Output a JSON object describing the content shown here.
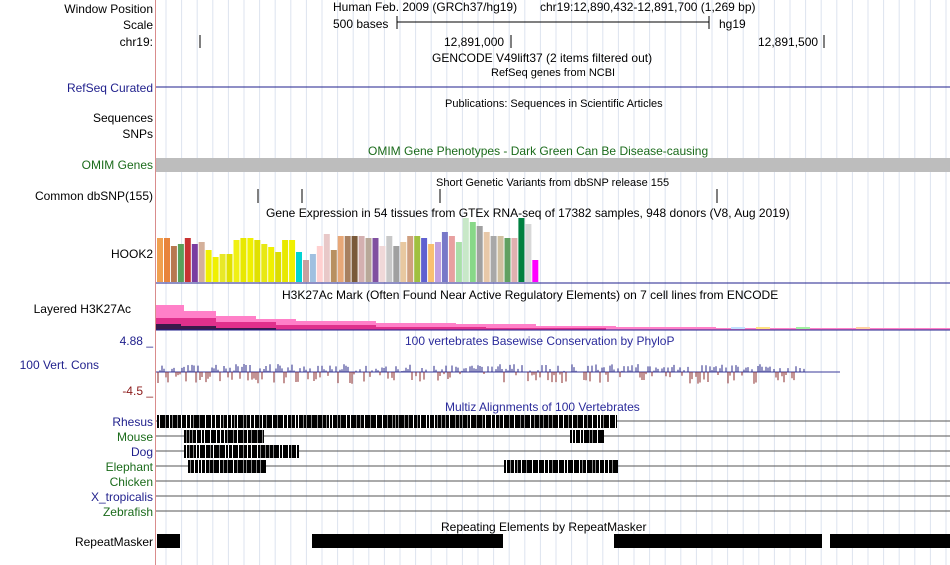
{
  "position": {
    "label": "Window Position",
    "assembly": "Human Feb. 2009 (GRCh37/hg19)",
    "coords": "chr19:12,890,432-12,891,700 (1,269 bp)"
  },
  "scale": {
    "label": "Scale",
    "bar_text": "500 bases",
    "db": "hg19"
  },
  "chrom": {
    "label": "chr19:",
    "tick1": "12,891,000",
    "tick2": "12,891,500"
  },
  "gencode": {
    "title": "GENCODE V49lift37 (2 items filtered out)"
  },
  "refseq": {
    "label": "RefSeq Curated",
    "title": "RefSeq genes from NCBI"
  },
  "publications": {
    "title": "Publications: Sequences in Scientific Articles",
    "label1": "Sequences",
    "label2": "SNPs"
  },
  "omim": {
    "label": "OMIM Genes",
    "title": "OMIM Gene Phenotypes - Dark Green Can Be Disease-causing"
  },
  "dbsnp": {
    "label": "Common dbSNP(155)",
    "title": "Short Genetic Variants from dbSNP release 155"
  },
  "gtex": {
    "label": "HOOK2",
    "title": "Gene Expression in 54 tissues from GTEx RNA-seq of 17382 samples, 948 donors (V8, Aug 2019)",
    "values": [
      44,
      44,
      36,
      38,
      44,
      38,
      40,
      32,
      25,
      28,
      28,
      42,
      44,
      44,
      42,
      38,
      35,
      30,
      42,
      42,
      30,
      22,
      28,
      36,
      48,
      32,
      46,
      46,
      46,
      46,
      44,
      44,
      36,
      46,
      36,
      40,
      46,
      46,
      44,
      38,
      40,
      50,
      46,
      40,
      64,
      60,
      56,
      50,
      46,
      46,
      44,
      44,
      64,
      58,
      22
    ],
    "colors": [
      "#f0a050",
      "#e8843c",
      "#b87850",
      "#5aa05a",
      "#c83232",
      "#7a3ca0",
      "#d4b09a",
      "#f0f000",
      "#f0f000",
      "#e8e828",
      "#e0e000",
      "#f0f014",
      "#e8e800",
      "#f0f000",
      "#e0e000",
      "#e8e814",
      "#f0f000",
      "#dcdc00",
      "#e8e800",
      "#f0f000",
      "#00d4d4",
      "#c8a0a0",
      "#a0c0e0",
      "#ffd0d0",
      "#e8c8c8",
      "#b89060",
      "#e8a878",
      "#a88060",
      "#7a5a3a",
      "#d4b0b0",
      "#b8a898",
      "#8050a0",
      "#f0d8d8",
      "#c8c8c8",
      "#a0a0a0",
      "#e8c8a0",
      "#d0a080",
      "#a0c040",
      "#6060d0",
      "#f8c070",
      "#c0a0e0",
      "#7878c8",
      "#e8a0a0",
      "#a8e0a8",
      "#c8e8c8",
      "#88d888",
      "#a0a0a0",
      "#e8c8a8",
      "#a8a8a8",
      "#d0c0a0",
      "#60a060",
      "#e0b0b0",
      "#008040",
      "#d8d8d8",
      "#ff00ff"
    ]
  },
  "h3k27ac": {
    "label": "Layered H3K27Ac",
    "title": "H3K27Ac Mark (Often Found Near Active Regulatory Elements) on 7 cell lines from ENCODE"
  },
  "phylop": {
    "label": "100 Vert. Cons",
    "max": "4.88 _",
    "min": "-4.5 _",
    "title": "100 vertebrates Basewise Conservation by PhyloP"
  },
  "multiz": {
    "title": "Multiz Alignments of 100 Vertebrates",
    "species": [
      {
        "name": "Rhesus",
        "color": "#1f1f8c"
      },
      {
        "name": "Mouse",
        "color": "#1b6b1b"
      },
      {
        "name": "Dog",
        "color": "#1f1f8c"
      },
      {
        "name": "Elephant",
        "color": "#1b6b1b"
      },
      {
        "name": "Chicken",
        "color": "#1b6b1b"
      },
      {
        "name": "X_tropicalis",
        "color": "#1f1f8c"
      },
      {
        "name": "Zebrafish",
        "color": "#1b6b1b"
      }
    ]
  },
  "repeatmasker": {
    "label": "RepeatMasker",
    "title": "Repeating Elements by RepeatMasker"
  }
}
